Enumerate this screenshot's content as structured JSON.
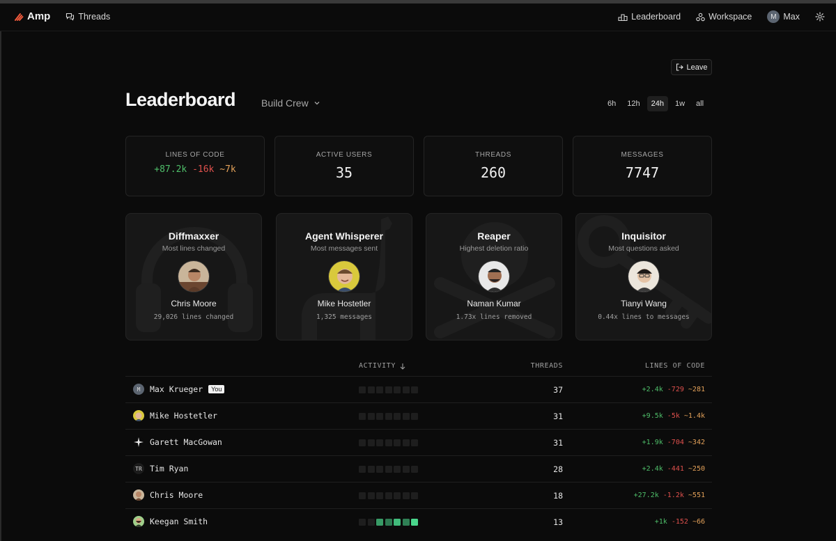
{
  "nav": {
    "brand": "Amp",
    "threads_label": "Threads",
    "leaderboard_label": "Leaderboard",
    "workspace_label": "Workspace",
    "user_initial": "M",
    "user_name": "Max"
  },
  "header": {
    "leave_label": "Leave",
    "title": "Leaderboard",
    "team": "Build Crew",
    "ranges": [
      "6h",
      "12h",
      "24h",
      "1w",
      "all"
    ],
    "active_range": "24h"
  },
  "stats": {
    "loc_label": "LINES OF CODE",
    "loc_added": "+87.2k",
    "loc_removed": "-16k",
    "loc_changed": "~7k",
    "users_label": "ACTIVE USERS",
    "users_value": "35",
    "threads_label": "THREADS",
    "threads_value": "260",
    "messages_label": "MESSAGES",
    "messages_value": "7747"
  },
  "awards": [
    {
      "title": "Diffmaxxer",
      "desc": "Most lines changed",
      "name": "Chris Moore",
      "stat": "29,026 lines changed",
      "icon": "headphones-icon"
    },
    {
      "title": "Agent Whisperer",
      "desc": "Most messages sent",
      "name": "Mike Hostetler",
      "stat": "1,325 messages",
      "icon": "llama-icon"
    },
    {
      "title": "Reaper",
      "desc": "Highest deletion ratio",
      "name": "Naman Kumar",
      "stat": "1.73x lines removed",
      "icon": "skull-crossbones-icon"
    },
    {
      "title": "Inquisitor",
      "desc": "Most questions asked",
      "name": "Tianyi Wang",
      "stat": "0.44x lines to messages",
      "icon": "key-icon"
    }
  ],
  "table": {
    "activity_label": "ACTIVITY",
    "threads_label": "THREADS",
    "loc_label": "LINES OF CODE",
    "you_label": "You",
    "rows": [
      {
        "name": "Max Krueger",
        "initials": "M",
        "you": true,
        "threads": "37",
        "added": "+2.4k",
        "removed": "-729",
        "changed": "~281",
        "activity": [
          0,
          0,
          0,
          0,
          0,
          0,
          0
        ]
      },
      {
        "name": "Mike Hostetler",
        "initials": "",
        "you": false,
        "threads": "31",
        "added": "+9.5k",
        "removed": "-5k",
        "changed": "~1.4k",
        "activity": [
          0,
          0,
          0,
          0,
          0,
          0,
          0
        ]
      },
      {
        "name": "Garett MacGowan",
        "initials": "",
        "you": false,
        "threads": "31",
        "added": "+1.9k",
        "removed": "-704",
        "changed": "~342",
        "activity": [
          0,
          0,
          0,
          0,
          0,
          0,
          0
        ]
      },
      {
        "name": "Tim Ryan",
        "initials": "TR",
        "you": false,
        "threads": "28",
        "added": "+2.4k",
        "removed": "-441",
        "changed": "~250",
        "activity": [
          0,
          0,
          0,
          0,
          0,
          0,
          0
        ]
      },
      {
        "name": "Chris Moore",
        "initials": "",
        "you": false,
        "threads": "18",
        "added": "+27.2k",
        "removed": "-1.2k",
        "changed": "~551",
        "activity": [
          0,
          0,
          0,
          0,
          0,
          0,
          0
        ]
      },
      {
        "name": "Keegan Smith",
        "initials": "",
        "you": false,
        "threads": "13",
        "added": "+1k",
        "removed": "-152",
        "changed": "~66",
        "activity": [
          0,
          0,
          0.55,
          0.3,
          0.8,
          0.35,
          1
        ]
      }
    ]
  },
  "colors": {
    "added": "#4fbf6a",
    "removed": "#e0514d",
    "changed": "#e4a25a",
    "brand": "#f05a3c",
    "activity_empty": "#1e1e1e"
  }
}
